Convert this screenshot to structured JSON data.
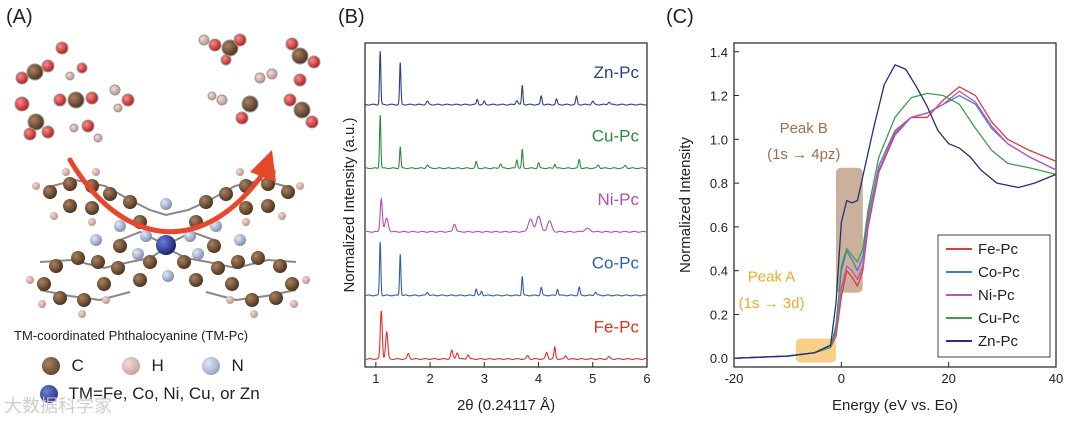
{
  "panels": {
    "a": {
      "label": "(A)",
      "caption": "TM-coordinated Phthalocyanine (TM-Pc)",
      "legend": [
        {
          "symbol": "C",
          "color": "#6b4a2e"
        },
        {
          "symbol": "H",
          "color": "#d8b0a8"
        },
        {
          "symbol": "N",
          "color": "#aab4d0"
        }
      ],
      "tm_text": "TM=Fe, Co, Ni, Cu, or Zn",
      "tm_color": "#1f2f8c",
      "arrow_color": "#e8482a"
    },
    "b": {
      "label": "(B)"
    },
    "c": {
      "label": "(C)"
    }
  },
  "watermark": "大数据科学家",
  "chart_data": [
    {
      "type": "line",
      "title": "",
      "xlabel": "2θ (0.24117 Å)",
      "ylabel": "Normalized Intensity (a.u.)",
      "xlim": [
        0.8,
        6.0
      ],
      "xticks": [
        1,
        2,
        3,
        4,
        5,
        6
      ],
      "x_tick_labels": [
        "1",
        "2",
        "3",
        "4",
        "5",
        "6"
      ],
      "y_ticks_shown": false,
      "series": [
        {
          "name": "Zn-Pc",
          "color": "#2c3f7f",
          "offset": 4,
          "peaks": [
            [
              1.08,
              1.0,
              0.012
            ],
            [
              1.45,
              0.78,
              0.012
            ],
            [
              1.95,
              0.06,
              0.02
            ],
            [
              2.87,
              0.1,
              0.015
            ],
            [
              3.0,
              0.06,
              0.015
            ],
            [
              3.6,
              0.08,
              0.02
            ],
            [
              3.7,
              0.36,
              0.012
            ],
            [
              4.05,
              0.16,
              0.015
            ],
            [
              4.33,
              0.1,
              0.015
            ],
            [
              4.7,
              0.15,
              0.015
            ],
            [
              5.0,
              0.06,
              0.02
            ],
            [
              5.3,
              0.05,
              0.02
            ]
          ]
        },
        {
          "name": "Cu-Pc",
          "color": "#2e8b3a",
          "offset": 3,
          "peaks": [
            [
              1.08,
              1.0,
              0.012
            ],
            [
              1.45,
              0.4,
              0.012
            ],
            [
              1.95,
              0.06,
              0.02
            ],
            [
              2.85,
              0.12,
              0.015
            ],
            [
              3.3,
              0.08,
              0.02
            ],
            [
              3.6,
              0.16,
              0.015
            ],
            [
              3.7,
              0.35,
              0.012
            ],
            [
              4.0,
              0.1,
              0.015
            ],
            [
              4.3,
              0.08,
              0.015
            ],
            [
              4.75,
              0.16,
              0.015
            ],
            [
              5.1,
              0.06,
              0.02
            ],
            [
              5.6,
              0.05,
              0.02
            ]
          ]
        },
        {
          "name": "Ni-Pc",
          "color": "#b04fb0",
          "offset": 2,
          "peaks": [
            [
              1.1,
              0.62,
              0.02
            ],
            [
              1.2,
              0.25,
              0.03
            ],
            [
              2.45,
              0.15,
              0.025
            ],
            [
              3.85,
              0.24,
              0.04
            ],
            [
              4.0,
              0.3,
              0.04
            ],
            [
              4.2,
              0.2,
              0.04
            ],
            [
              4.9,
              0.06,
              0.05
            ]
          ]
        },
        {
          "name": "Co-Pc",
          "color": "#2f5fa8",
          "offset": 1,
          "peaks": [
            [
              1.08,
              1.0,
              0.012
            ],
            [
              1.45,
              0.78,
              0.012
            ],
            [
              1.95,
              0.06,
              0.02
            ],
            [
              2.85,
              0.12,
              0.015
            ],
            [
              2.95,
              0.08,
              0.015
            ],
            [
              3.7,
              0.36,
              0.012
            ],
            [
              4.05,
              0.15,
              0.015
            ],
            [
              4.35,
              0.12,
              0.015
            ],
            [
              4.75,
              0.15,
              0.015
            ],
            [
              5.05,
              0.06,
              0.02
            ]
          ]
        },
        {
          "name": "Fe-Pc",
          "color": "#e0302a",
          "offset": 0,
          "peaks": [
            [
              1.1,
              0.9,
              0.018
            ],
            [
              1.2,
              0.5,
              0.02
            ],
            [
              1.6,
              0.1,
              0.02
            ],
            [
              2.4,
              0.16,
              0.02
            ],
            [
              2.5,
              0.12,
              0.02
            ],
            [
              2.7,
              0.08,
              0.02
            ],
            [
              3.8,
              0.06,
              0.02
            ],
            [
              4.15,
              0.12,
              0.02
            ],
            [
              4.3,
              0.22,
              0.015
            ],
            [
              4.5,
              0.06,
              0.02
            ],
            [
              5.3,
              0.04,
              0.02
            ]
          ]
        }
      ]
    },
    {
      "type": "line",
      "title": "",
      "xlabel": "Energy (eV vs. Eo)",
      "ylabel": "Normalized Intensity",
      "xlim": [
        -20,
        40
      ],
      "ylim": [
        -0.04,
        1.44
      ],
      "xticks": [
        -20,
        0,
        20,
        40
      ],
      "x_tick_labels": [
        "-20",
        "0",
        "20",
        "40"
      ],
      "yticks": [
        0.0,
        0.2,
        0.4,
        0.6,
        0.8,
        1.0,
        1.2,
        1.4
      ],
      "y_tick_labels": [
        "0.0",
        "0.2",
        "0.4",
        "0.6",
        "0.8",
        "1.0",
        "1.2",
        "1.4"
      ],
      "legend_position": "lower-right",
      "annotations": [
        {
          "id": "peak-b",
          "title": "Peak B",
          "detail": "(1s → 4pz)",
          "color": "#a0704a",
          "box_x": [
            -1,
            4
          ],
          "box_y": [
            0.3,
            0.87
          ]
        },
        {
          "id": "peak-a",
          "title": "Peak A",
          "detail": "(1s → 3d)",
          "color": "#f0a828",
          "box_x": [
            -8.5,
            -1
          ],
          "box_y": [
            -0.02,
            0.09
          ]
        }
      ],
      "series": [
        {
          "name": "Fe-Pc",
          "color": "#e03a3a",
          "points": [
            [
              -20,
              0
            ],
            [
              -10,
              0.01
            ],
            [
              -5,
              0.025
            ],
            [
              -2,
              0.05
            ],
            [
              -1,
              0.1
            ],
            [
              0,
              0.28
            ],
            [
              1,
              0.4
            ],
            [
              2,
              0.37
            ],
            [
              3,
              0.33
            ],
            [
              4,
              0.4
            ],
            [
              5,
              0.6
            ],
            [
              7,
              0.85
            ],
            [
              10,
              1.02
            ],
            [
              13,
              1.1
            ],
            [
              16,
              1.1
            ],
            [
              19,
              1.18
            ],
            [
              22,
              1.24
            ],
            [
              25,
              1.2
            ],
            [
              28,
              1.08
            ],
            [
              31,
              1.0
            ],
            [
              35,
              0.95
            ],
            [
              40,
              0.9
            ]
          ]
        },
        {
          "name": "Co-Pc",
          "color": "#3f7fc8",
          "points": [
            [
              -20,
              0
            ],
            [
              -10,
              0.01
            ],
            [
              -5,
              0.025
            ],
            [
              -2,
              0.05
            ],
            [
              -1,
              0.15
            ],
            [
              0,
              0.4
            ],
            [
              1,
              0.49
            ],
            [
              2,
              0.45
            ],
            [
              3,
              0.4
            ],
            [
              4,
              0.46
            ],
            [
              5,
              0.65
            ],
            [
              7,
              0.88
            ],
            [
              10,
              1.04
            ],
            [
              13,
              1.1
            ],
            [
              16,
              1.12
            ],
            [
              19,
              1.16
            ],
            [
              22,
              1.2
            ],
            [
              25,
              1.16
            ],
            [
              28,
              1.05
            ],
            [
              31,
              0.98
            ],
            [
              35,
              0.92
            ],
            [
              40,
              0.86
            ]
          ]
        },
        {
          "name": "Ni-Pc",
          "color": "#c050c0",
          "points": [
            [
              -20,
              0
            ],
            [
              -10,
              0.01
            ],
            [
              -5,
              0.025
            ],
            [
              -2,
              0.05
            ],
            [
              -1,
              0.12
            ],
            [
              0,
              0.32
            ],
            [
              1,
              0.42
            ],
            [
              2,
              0.4
            ],
            [
              3,
              0.36
            ],
            [
              4,
              0.42
            ],
            [
              5,
              0.62
            ],
            [
              7,
              0.86
            ],
            [
              10,
              1.03
            ],
            [
              13,
              1.1
            ],
            [
              16,
              1.12
            ],
            [
              19,
              1.16
            ],
            [
              22,
              1.22
            ],
            [
              25,
              1.17
            ],
            [
              28,
              1.06
            ],
            [
              31,
              0.98
            ],
            [
              35,
              0.92
            ],
            [
              40,
              0.86
            ]
          ]
        },
        {
          "name": "Cu-Pc",
          "color": "#3aa04a",
          "points": [
            [
              -20,
              0
            ],
            [
              -10,
              0.01
            ],
            [
              -5,
              0.025
            ],
            [
              -2,
              0.05
            ],
            [
              -1,
              0.14
            ],
            [
              0,
              0.42
            ],
            [
              1,
              0.5
            ],
            [
              2,
              0.47
            ],
            [
              3,
              0.44
            ],
            [
              4,
              0.5
            ],
            [
              5,
              0.68
            ],
            [
              7,
              0.92
            ],
            [
              10,
              1.1
            ],
            [
              13,
              1.19
            ],
            [
              16,
              1.21
            ],
            [
              19,
              1.2
            ],
            [
              22,
              1.16
            ],
            [
              25,
              1.05
            ],
            [
              28,
              0.95
            ],
            [
              31,
              0.89
            ],
            [
              35,
              0.87
            ],
            [
              40,
              0.84
            ]
          ]
        },
        {
          "name": "Zn-Pc",
          "color": "#23307a",
          "points": [
            [
              -20,
              0
            ],
            [
              -10,
              0.01
            ],
            [
              -5,
              0.025
            ],
            [
              -2,
              0.06
            ],
            [
              -1,
              0.25
            ],
            [
              0,
              0.62
            ],
            [
              1,
              0.72
            ],
            [
              2,
              0.71
            ],
            [
              3,
              0.72
            ],
            [
              4,
              0.83
            ],
            [
              6,
              1.05
            ],
            [
              8,
              1.25
            ],
            [
              10,
              1.34
            ],
            [
              12,
              1.32
            ],
            [
              14,
              1.24
            ],
            [
              16,
              1.15
            ],
            [
              18,
              1.04
            ],
            [
              20,
              0.98
            ],
            [
              22,
              0.96
            ],
            [
              24,
              0.92
            ],
            [
              26,
              0.86
            ],
            [
              29,
              0.8
            ],
            [
              33,
              0.78
            ],
            [
              36,
              0.8
            ],
            [
              40,
              0.84
            ]
          ]
        }
      ]
    }
  ]
}
